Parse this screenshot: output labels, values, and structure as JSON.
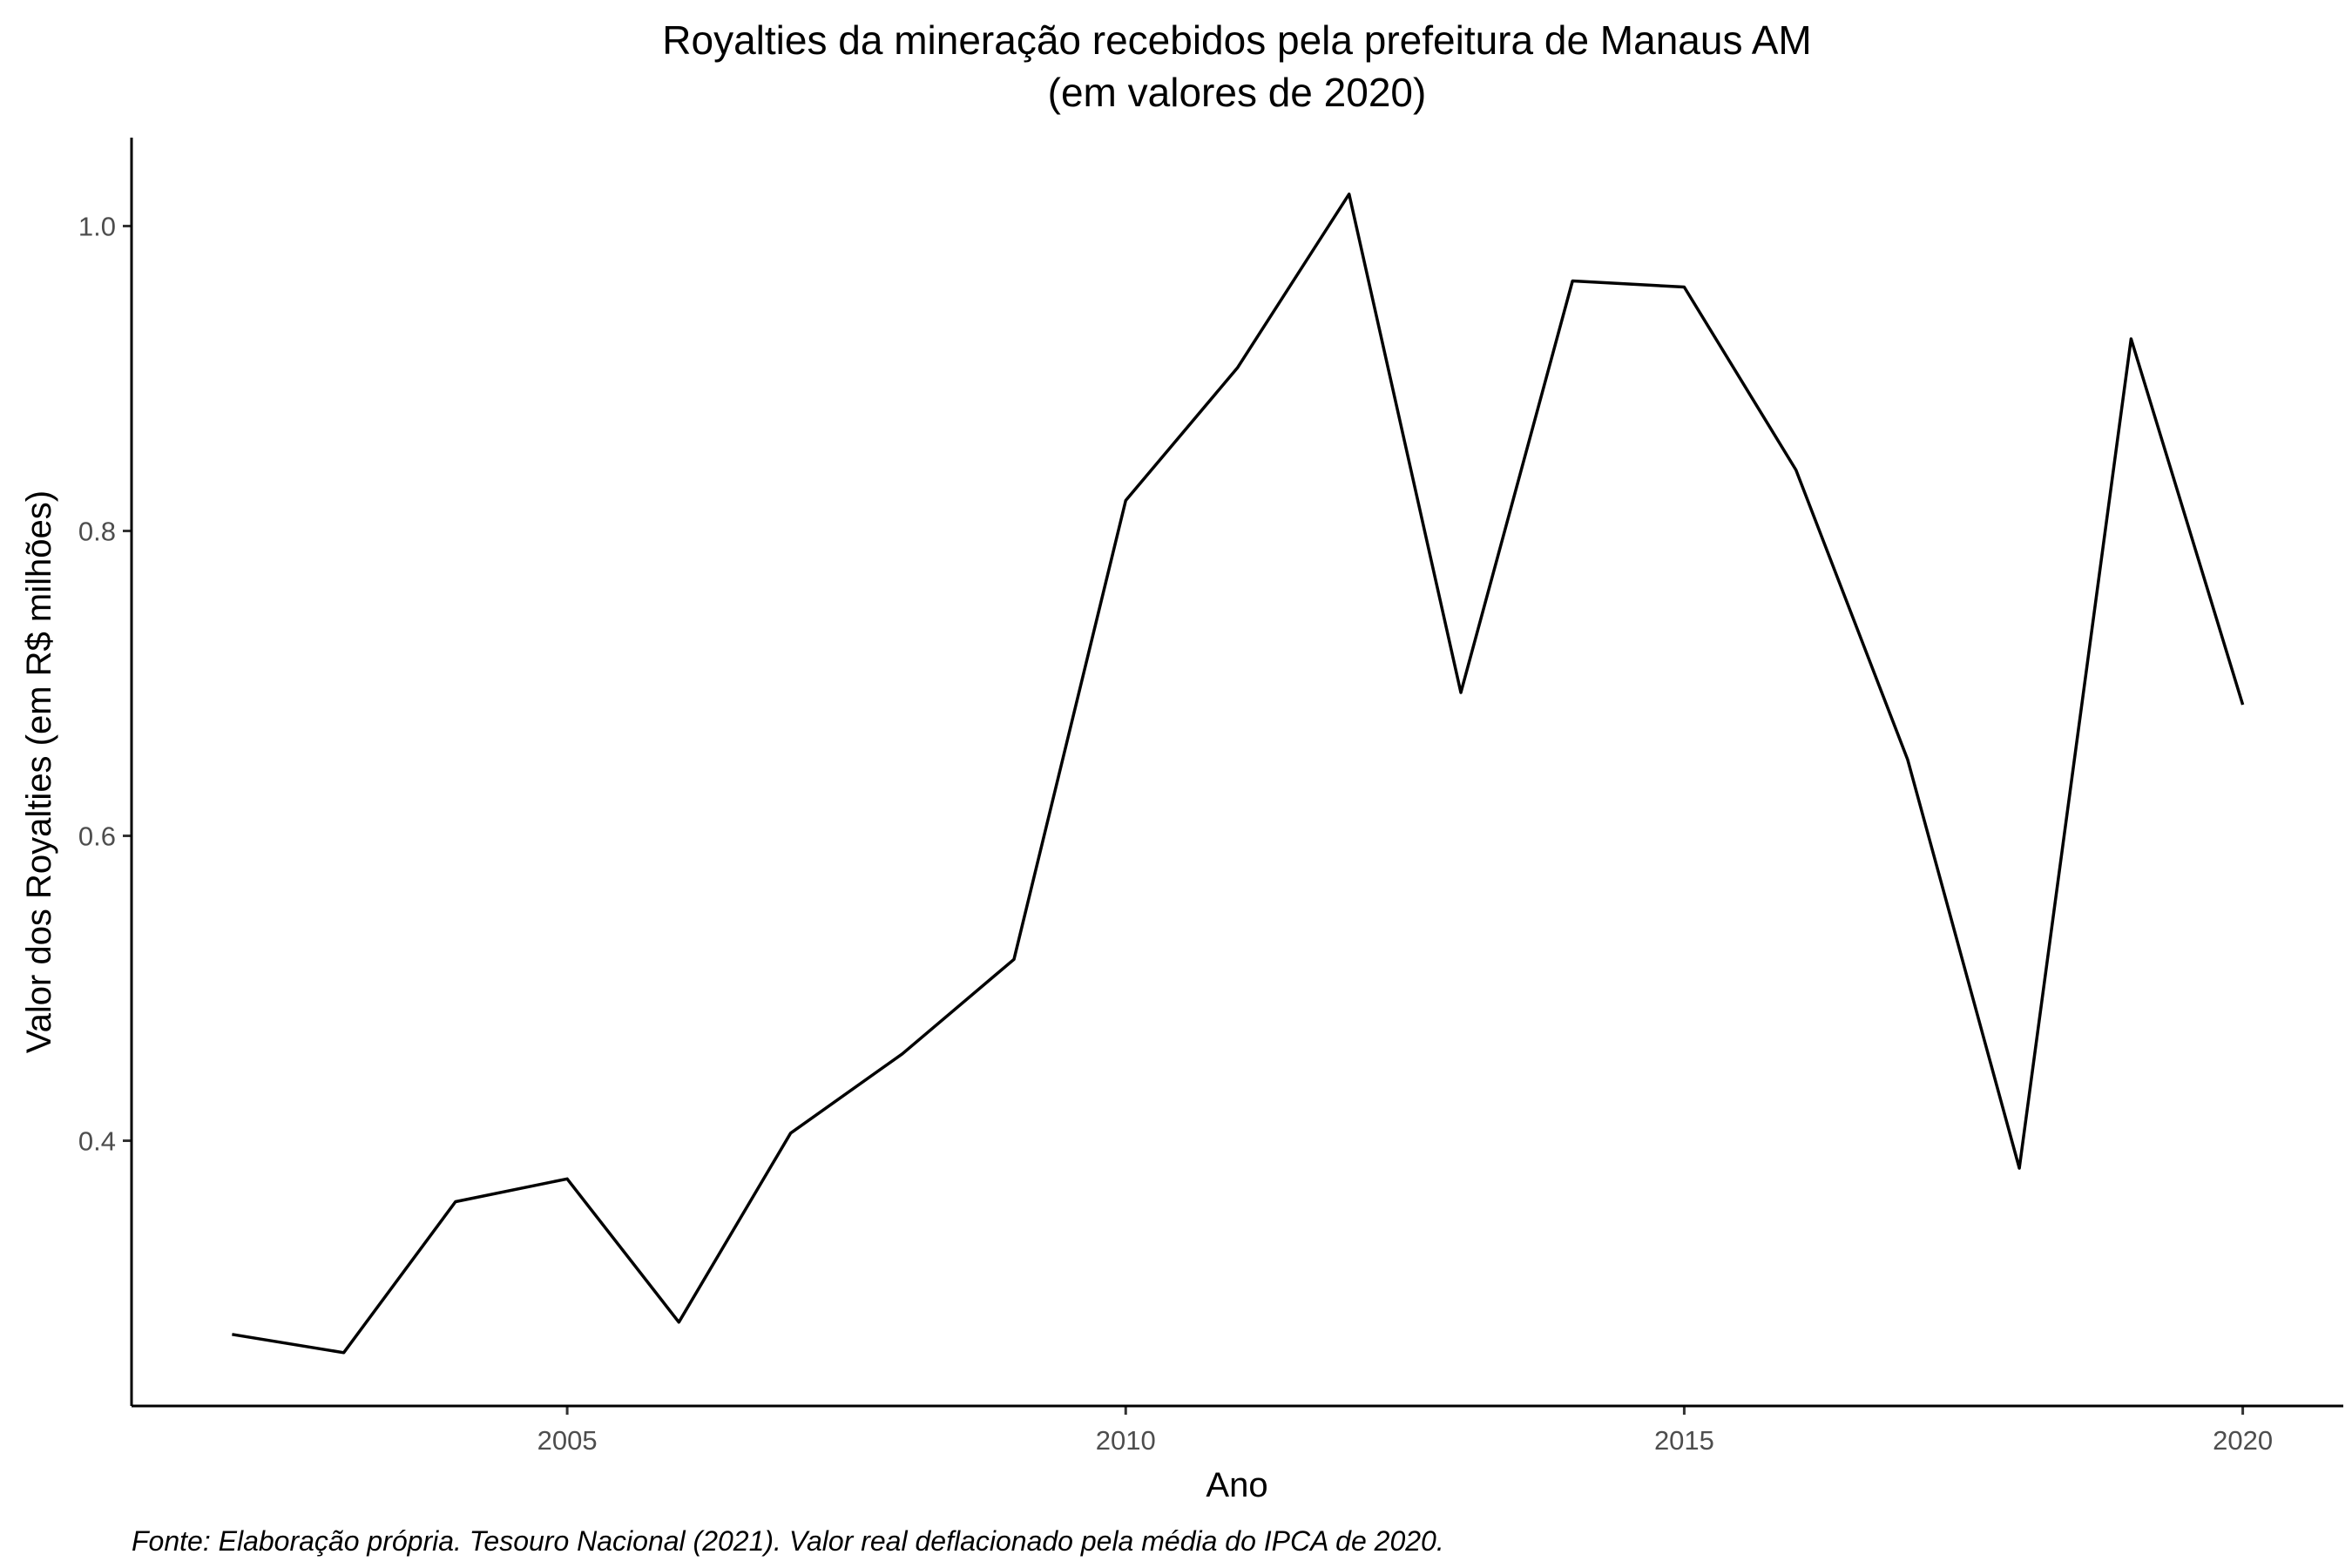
{
  "chart_data": {
    "type": "line",
    "title": "Royalties da mineração recebidos pela prefeitura de Manaus AM",
    "subtitle": "(em valores de 2020)",
    "xlabel": "Ano",
    "ylabel": "Valor dos Royalties (em R$ milhões)",
    "caption": "Fonte: Elaboração própria. Tesouro Nacional (2021). Valor real deflacionado pela média do IPCA de 2020.",
    "x": [
      2002,
      2003,
      2004,
      2005,
      2006,
      2007,
      2008,
      2009,
      2010,
      2011,
      2012,
      2013,
      2014,
      2015,
      2016,
      2017,
      2018,
      2019,
      2020
    ],
    "series": [
      {
        "values": [
          0.273,
          0.261,
          0.36,
          0.375,
          0.281,
          0.405,
          0.457,
          0.519,
          0.82,
          0.907,
          1.021,
          0.694,
          0.964,
          0.96,
          0.84,
          0.65,
          0.382,
          0.926,
          0.686
        ],
        "color": "#000000"
      }
    ],
    "xlim": [
      2001.1,
      2020.9
    ],
    "ylim": [
      0.226,
      1.058
    ],
    "x_ticks": [
      "2005",
      "2010",
      "2015",
      "2020"
    ],
    "y_ticks": [
      "0.4",
      "0.6",
      "0.8",
      "1.0"
    ],
    "grid": false,
    "legend": "none"
  }
}
